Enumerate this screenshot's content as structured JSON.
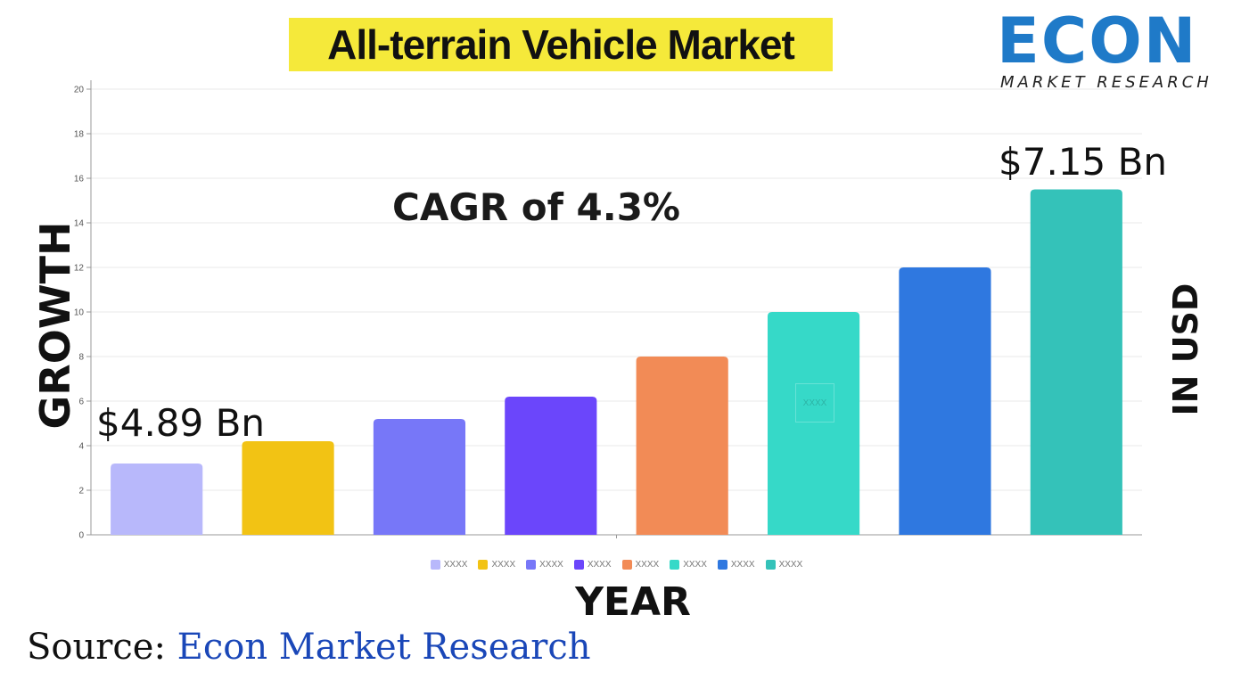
{
  "page": {
    "title": "All-terrain Vehicle Market",
    "logo": {
      "word": "ECON",
      "subtitle": "MARKET RESEARCH"
    },
    "left_axis_label": "GROWTH",
    "right_axis_label": "IN USD",
    "x_axis_label": "YEAR",
    "cagr_text": "CAGR of 4.3%",
    "start_value_label": "$4.89 Bn",
    "end_value_label": "$7.15 Bn",
    "source": {
      "prefix": "Source:",
      "name": "Econ Market Research"
    },
    "watermark_text": "XXXX"
  },
  "colors": {
    "title_highlight": "#f5e93a",
    "logo_blue": "#1f7ac8",
    "source_blue": "#1a47b8",
    "grid": "#e9e9e9"
  },
  "chart_data": {
    "type": "bar",
    "categories": [
      "XXXX",
      "XXXX",
      "XXXX",
      "XXXX",
      "XXXX",
      "XXXX",
      "XXXX",
      "XXXX"
    ],
    "values": [
      3.2,
      4.2,
      5.2,
      6.2,
      8,
      10,
      12,
      15.5
    ],
    "colors": [
      "#b8b8fb",
      "#f2c314",
      "#7777f8",
      "#6b46fb",
      "#f28b56",
      "#36d9c8",
      "#2f78e0",
      "#34c2b9"
    ],
    "ylim": [
      0,
      20
    ],
    "yticks": [
      0,
      2,
      4,
      6,
      8,
      10,
      12,
      14,
      16,
      18,
      20
    ],
    "grid": true,
    "legend": [
      {
        "label": "XXXX",
        "color": "#b8b8fb"
      },
      {
        "label": "XXXX",
        "color": "#f2c314"
      },
      {
        "label": "XXXX",
        "color": "#7777f8"
      },
      {
        "label": "XXXX",
        "color": "#6b46fb"
      },
      {
        "label": "XXXX",
        "color": "#f28b56"
      },
      {
        "label": "XXXX",
        "color": "#36d9c8"
      },
      {
        "label": "XXXX",
        "color": "#2f78e0"
      },
      {
        "label": "XXXX",
        "color": "#34c2b9"
      }
    ],
    "legend_position": "bottom"
  }
}
